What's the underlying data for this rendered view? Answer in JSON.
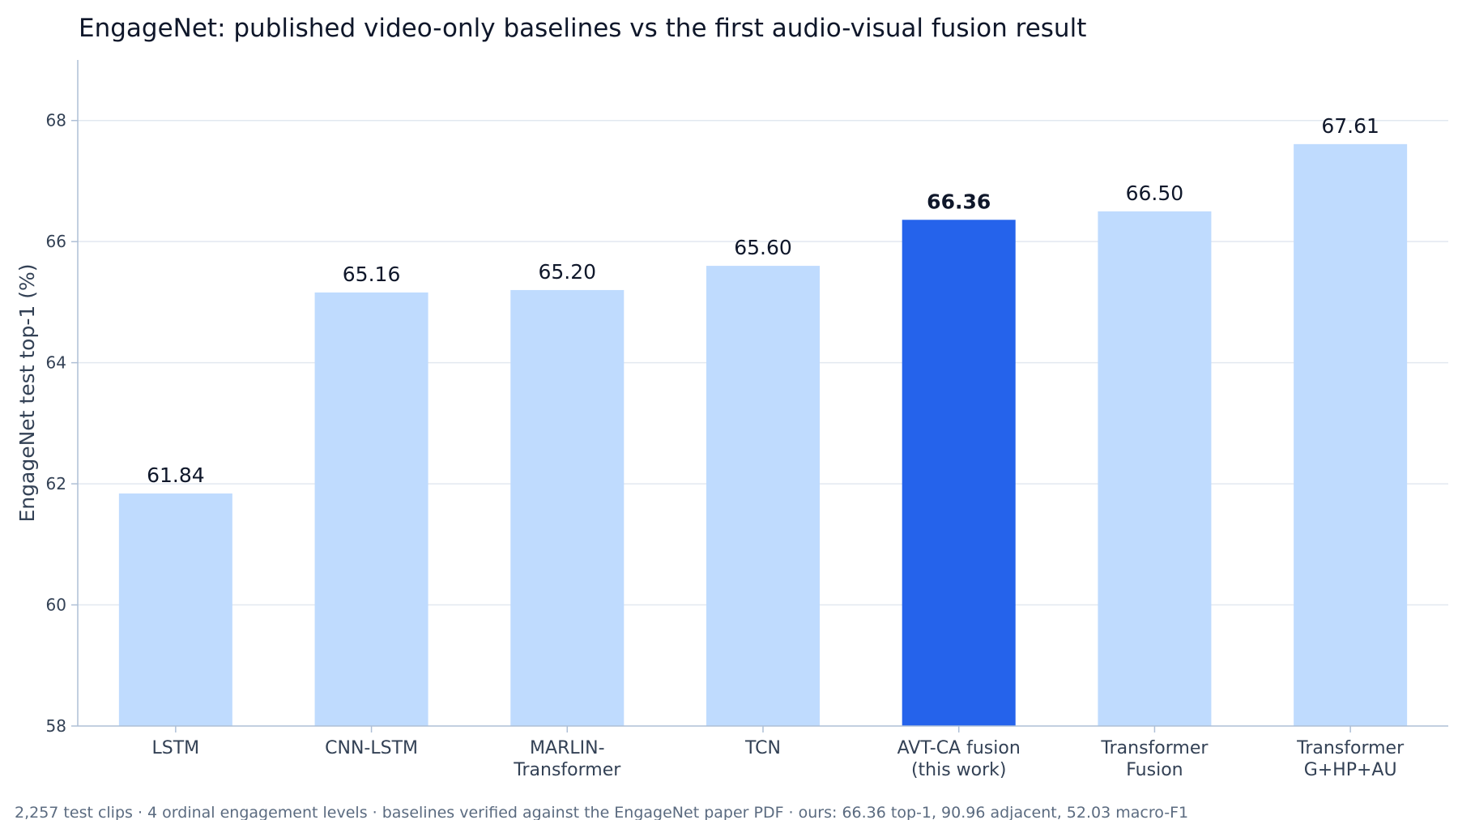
{
  "chart_data": {
    "type": "bar",
    "title": "EngageNet: published video-only baselines vs the first audio-visual fusion result",
    "ylabel": "EngageNet test top-1 (%)",
    "xlabel": "",
    "ylim": [
      58,
      69
    ],
    "yticks": [
      58,
      60,
      62,
      64,
      66,
      68
    ],
    "grid": true,
    "categories": [
      [
        "LSTM"
      ],
      [
        "CNN-LSTM"
      ],
      [
        "MARLIN-",
        "Transformer"
      ],
      [
        "TCN"
      ],
      [
        "AVT-CA fusion",
        "(this work)"
      ],
      [
        "Transformer",
        "Fusion"
      ],
      [
        "Transformer",
        "G+HP+AU"
      ]
    ],
    "values": [
      61.84,
      65.16,
      65.2,
      65.6,
      66.36,
      66.5,
      67.61
    ],
    "value_labels": [
      "61.84",
      "65.16",
      "65.20",
      "65.60",
      "66.36",
      "66.50",
      "67.61"
    ],
    "highlight_index": 4,
    "colors": {
      "baseline": "#bfdbfe",
      "highlight": "#2563eb"
    },
    "footnote": "2,257 test clips · 4 ordinal engagement levels · baselines verified against the EngageNet paper PDF · ours: 66.36 top-1, 90.96 adjacent, 52.03 macro-F1"
  }
}
